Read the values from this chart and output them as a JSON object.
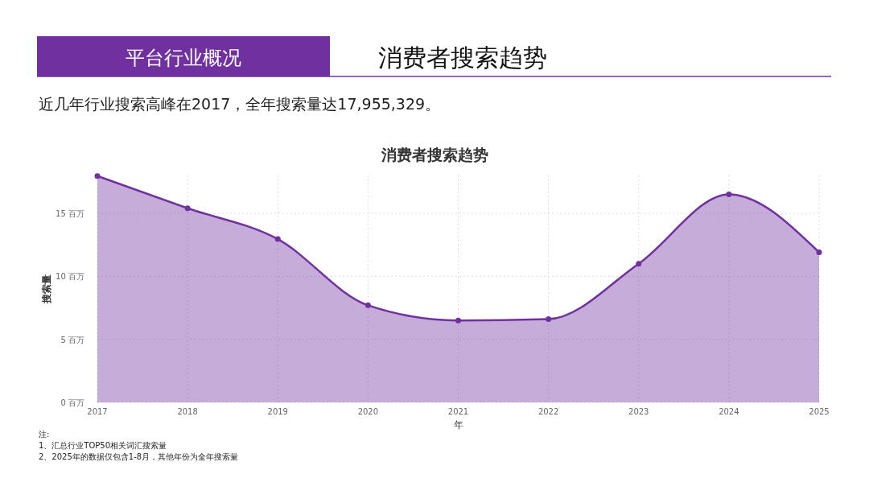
{
  "chart_data": {
    "type": "area",
    "title": "消费者搜索趋势",
    "subtitle": "近几年行业搜索高峰在2017，全年搜索量达17,955,329。",
    "xlabel": "年",
    "ylabel": "搜索量",
    "x": [
      2017,
      2018,
      2019,
      2020,
      2021,
      2022,
      2023,
      2024,
      2025
    ],
    "series": [
      {
        "color": "#7030a0",
        "values": [
          17.96,
          15.4,
          12.95,
          7.7,
          6.5,
          6.6,
          11.0,
          16.5,
          11.9
        ]
      }
    ],
    "xlim": [
      2017,
      2025
    ],
    "xticks": [
      2017,
      2018,
      2019,
      2020,
      2021,
      2022,
      2023,
      2024,
      2025
    ],
    "ylim": [
      0,
      18
    ],
    "yticks": [
      {
        "value": 0,
        "label": "0 百万"
      },
      {
        "value": 5,
        "label": "5 百万"
      },
      {
        "value": 10,
        "label": "10 百万"
      },
      {
        "value": 15,
        "label": "15 百万"
      }
    ],
    "grid": true,
    "marker": "circle",
    "line_style": "solid",
    "annotations": [
      "平台行业概况",
      "消费者搜索趋势",
      "注:",
      "1、汇总行业TOP50相关词汇搜索量",
      "2、2025年的数据仅包含1-8月，其他年份为全年搜索量"
    ]
  }
}
